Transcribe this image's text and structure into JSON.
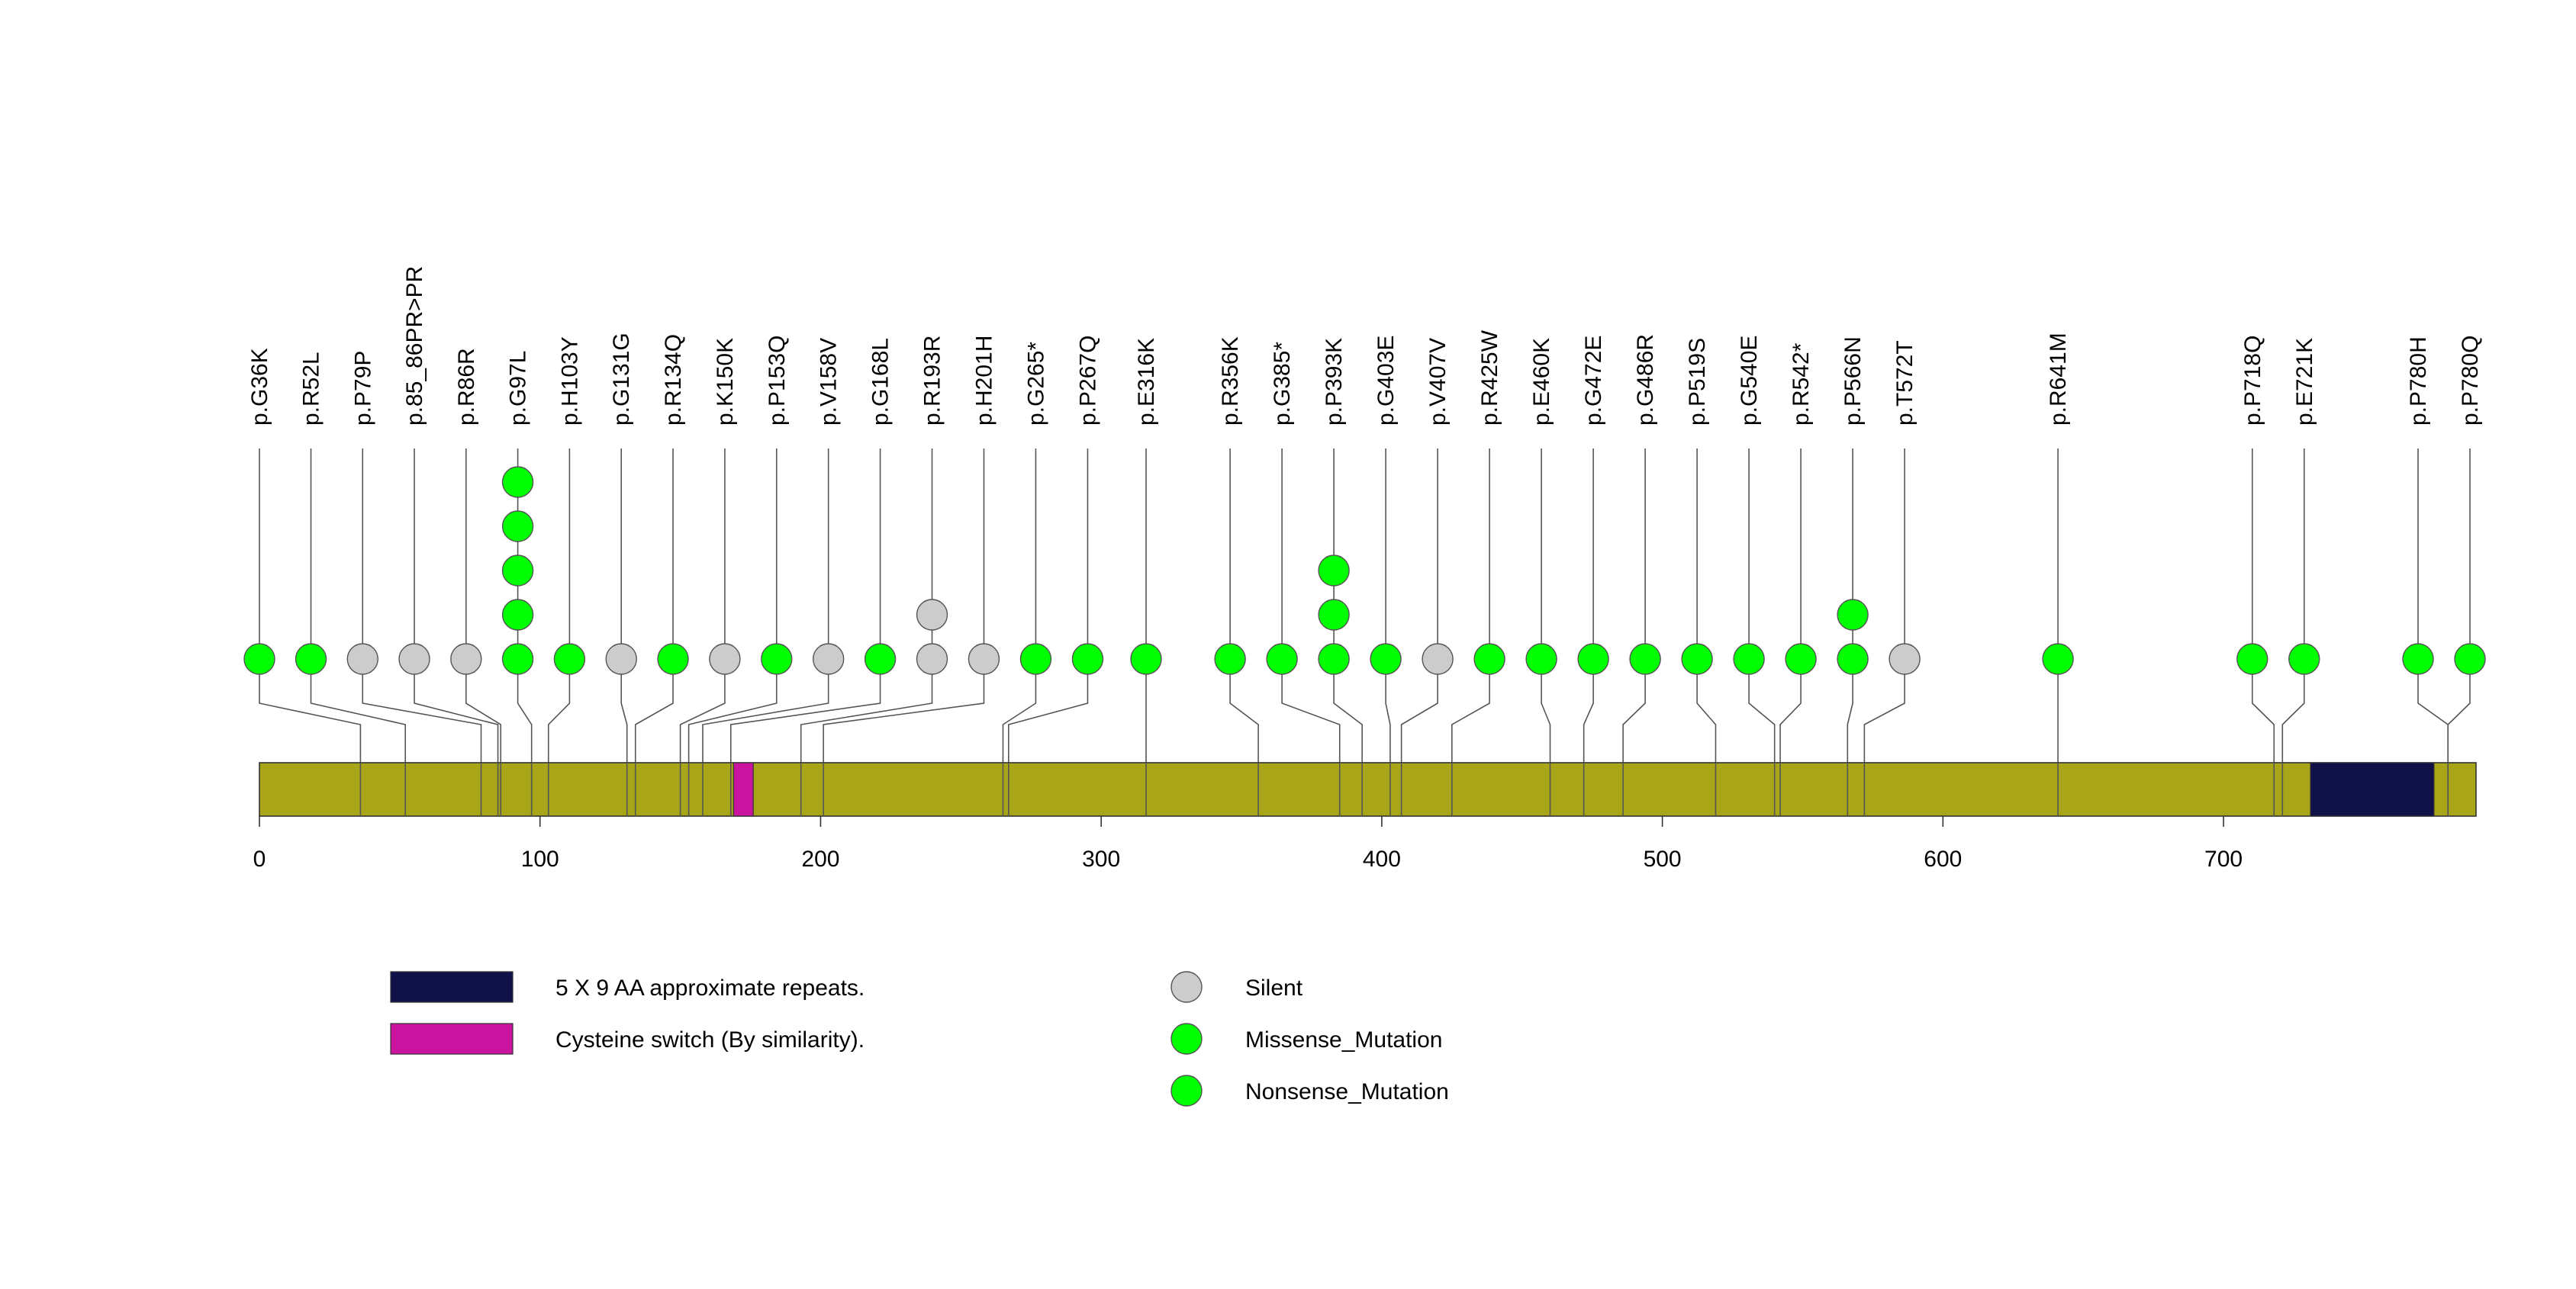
{
  "chart_data": {
    "type": "lollipop",
    "title": "",
    "protein_length": 790,
    "x_axis": {
      "min": 0,
      "max": 790,
      "ticks": [
        0,
        100,
        200,
        300,
        400,
        500,
        600,
        700
      ]
    },
    "colors": {
      "protein": "#a8a518",
      "Silent": "#cccccc",
      "Missense_Mutation": "#00ff00",
      "Nonsense_Mutation": "#00ff00",
      "repeats": "#11114a",
      "cysteine": "#c8149e"
    },
    "domains": [
      {
        "name": "Cysteine switch (By similarity).",
        "start": 169,
        "end": 176,
        "color": "#c8149e"
      },
      {
        "name": "5 X 9 AA approximate repeats.",
        "start": 731,
        "end": 775,
        "color": "#11114a"
      }
    ],
    "legend_domains": [
      {
        "label": "5 X 9 AA approximate repeats.",
        "color": "#11114a"
      },
      {
        "label": "Cysteine switch (By similarity).",
        "color": "#c8149e"
      }
    ],
    "legend_mutations": [
      {
        "label": "Silent",
        "color": "#cccccc"
      },
      {
        "label": "Missense_Mutation",
        "color": "#00ff00"
      },
      {
        "label": "Nonsense_Mutation",
        "color": "#00ff00"
      }
    ],
    "mutations": [
      {
        "label": "p.G36K",
        "pos": 36,
        "stack": [
          "Missense_Mutation"
        ]
      },
      {
        "label": "p.R52L",
        "pos": 52,
        "stack": [
          "Missense_Mutation"
        ]
      },
      {
        "label": "p.P79P",
        "pos": 79,
        "stack": [
          "Silent"
        ]
      },
      {
        "label": "p.85_86PR>PR",
        "pos": 85,
        "stack": [
          "Silent"
        ]
      },
      {
        "label": "p.R86R",
        "pos": 86,
        "stack": [
          "Silent"
        ]
      },
      {
        "label": "p.G97L",
        "pos": 97,
        "stack": [
          "Missense_Mutation",
          "Missense_Mutation",
          "Missense_Mutation",
          "Missense_Mutation",
          "Missense_Mutation"
        ]
      },
      {
        "label": "p.H103Y",
        "pos": 103,
        "stack": [
          "Missense_Mutation"
        ]
      },
      {
        "label": "p.G131G",
        "pos": 131,
        "stack": [
          "Silent"
        ]
      },
      {
        "label": "p.R134Q",
        "pos": 134,
        "stack": [
          "Missense_Mutation"
        ]
      },
      {
        "label": "p.K150K",
        "pos": 150,
        "stack": [
          "Silent"
        ]
      },
      {
        "label": "p.P153Q",
        "pos": 153,
        "stack": [
          "Missense_Mutation"
        ]
      },
      {
        "label": "p.V158V",
        "pos": 158,
        "stack": [
          "Silent"
        ]
      },
      {
        "label": "p.G168L",
        "pos": 168,
        "stack": [
          "Missense_Mutation"
        ]
      },
      {
        "label": "p.R193R",
        "pos": 193,
        "stack": [
          "Silent",
          "Silent"
        ]
      },
      {
        "label": "p.H201H",
        "pos": 201,
        "stack": [
          "Silent"
        ]
      },
      {
        "label": "p.G265*",
        "pos": 265,
        "stack": [
          "Nonsense_Mutation"
        ]
      },
      {
        "label": "p.P267Q",
        "pos": 267,
        "stack": [
          "Missense_Mutation"
        ]
      },
      {
        "label": "p.E316K",
        "pos": 316,
        "stack": [
          "Missense_Mutation"
        ]
      },
      {
        "label": "p.R356K",
        "pos": 356,
        "stack": [
          "Missense_Mutation"
        ]
      },
      {
        "label": "p.G385*",
        "pos": 385,
        "stack": [
          "Nonsense_Mutation"
        ]
      },
      {
        "label": "p.P393K",
        "pos": 393,
        "stack": [
          "Missense_Mutation",
          "Missense_Mutation",
          "Missense_Mutation"
        ]
      },
      {
        "label": "p.G403E",
        "pos": 403,
        "stack": [
          "Missense_Mutation"
        ]
      },
      {
        "label": "p.V407V",
        "pos": 407,
        "stack": [
          "Silent"
        ]
      },
      {
        "label": "p.R425W",
        "pos": 425,
        "stack": [
          "Missense_Mutation"
        ]
      },
      {
        "label": "p.E460K",
        "pos": 460,
        "stack": [
          "Missense_Mutation"
        ]
      },
      {
        "label": "p.G472E",
        "pos": 472,
        "stack": [
          "Missense_Mutation"
        ]
      },
      {
        "label": "p.G486R",
        "pos": 486,
        "stack": [
          "Missense_Mutation"
        ]
      },
      {
        "label": "p.P519S",
        "pos": 519,
        "stack": [
          "Missense_Mutation"
        ]
      },
      {
        "label": "p.G540E",
        "pos": 540,
        "stack": [
          "Missense_Mutation"
        ]
      },
      {
        "label": "p.R542*",
        "pos": 542,
        "stack": [
          "Nonsense_Mutation"
        ]
      },
      {
        "label": "p.P566N",
        "pos": 566,
        "stack": [
          "Missense_Mutation",
          "Missense_Mutation"
        ]
      },
      {
        "label": "p.T572T",
        "pos": 572,
        "stack": [
          "Silent"
        ]
      },
      {
        "label": "p.R641M",
        "pos": 641,
        "stack": [
          "Missense_Mutation"
        ]
      },
      {
        "label": "p.P718Q",
        "pos": 718,
        "stack": [
          "Missense_Mutation"
        ]
      },
      {
        "label": "p.E721K",
        "pos": 721,
        "stack": [
          "Missense_Mutation"
        ]
      },
      {
        "label": "p.P780H",
        "pos": 780,
        "stack": [
          "Missense_Mutation"
        ]
      },
      {
        "label": "p.P780Q",
        "pos": 780,
        "stack": [
          "Missense_Mutation"
        ]
      }
    ]
  }
}
